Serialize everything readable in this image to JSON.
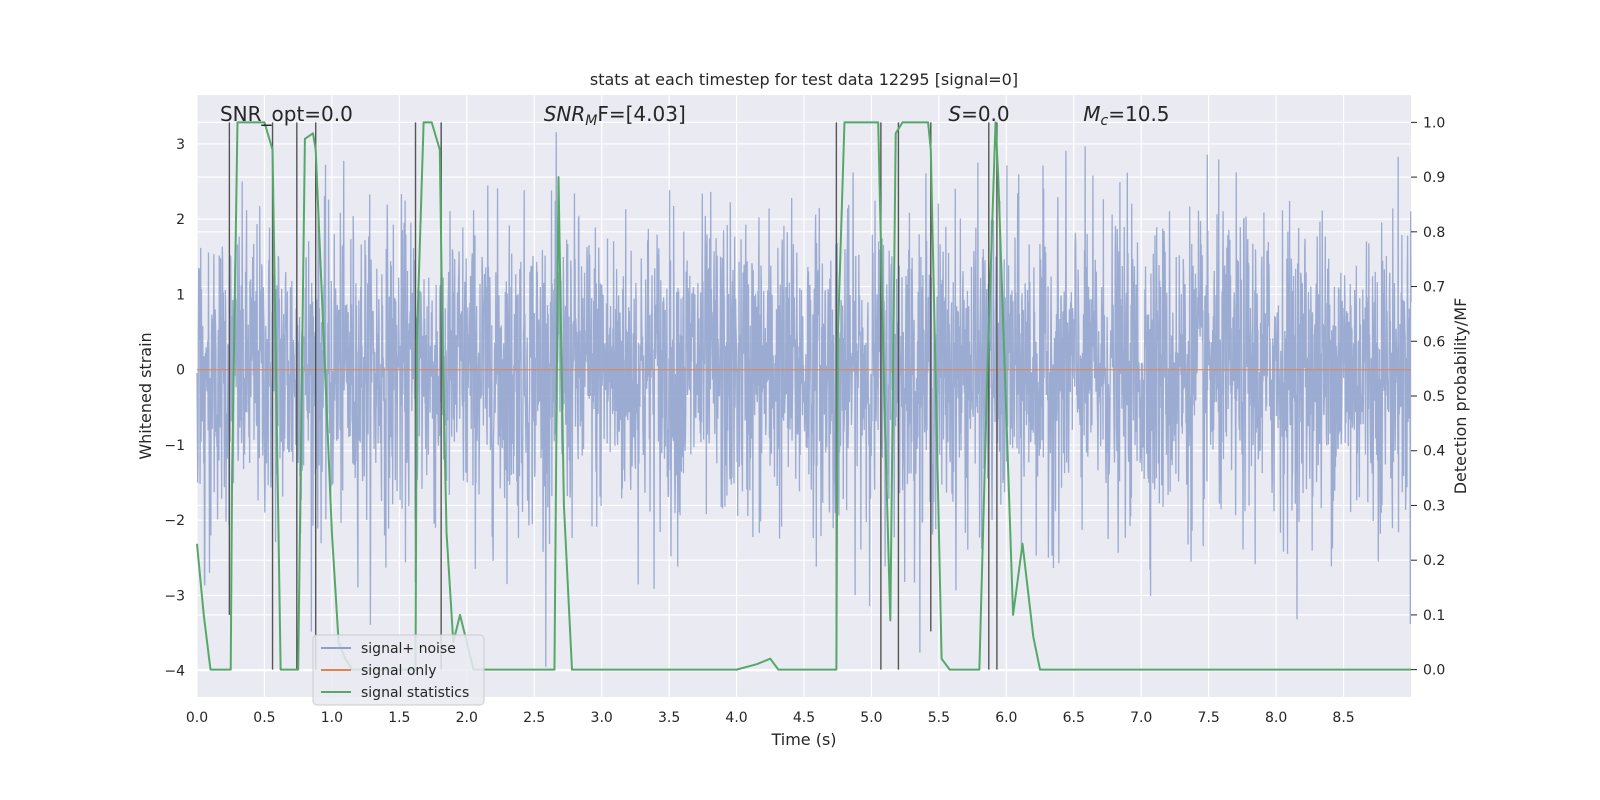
{
  "chart_data": {
    "type": "line",
    "title": "stats at each timestep for test data 12295 [signal=0]",
    "xlabel": "Time (s)",
    "ylabel": "Whitened strain",
    "ylabel_right": "Detection probability/MF",
    "xlim": [
      0,
      9.0
    ],
    "ylim": [
      -4.35,
      3.65
    ],
    "ylim_right": [
      -0.05,
      1.05
    ],
    "x_ticks": [
      0.0,
      0.5,
      1.0,
      1.5,
      2.0,
      2.5,
      3.0,
      3.5,
      4.0,
      4.5,
      5.0,
      5.5,
      6.0,
      6.5,
      7.0,
      7.5,
      8.0,
      8.5
    ],
    "y_ticks": [
      -4,
      -3,
      -2,
      -1,
      0,
      1,
      2,
      3
    ],
    "y_ticks_right": [
      0.0,
      0.1,
      0.2,
      0.3,
      0.4,
      0.5,
      0.6,
      0.7,
      0.8,
      0.9,
      1.0
    ],
    "annotations": [
      {
        "text": "SNR_opt=0.0",
        "x": 0.2
      },
      {
        "pre": "SNR",
        "sub": "M",
        "post": "F=[4.03]",
        "x": 2.6
      },
      {
        "pre": "S",
        "sub": "",
        "post": "=0.0",
        "x": 5.6
      },
      {
        "pre": "M",
        "sub": "c",
        "post": "=10.5",
        "x": 6.6
      }
    ],
    "legend": {
      "placement": "lower-left",
      "entries": [
        "signal+ noise",
        "signal only",
        "signal statistics"
      ]
    },
    "series": [
      {
        "name": "signal+ noise",
        "color": "#8da0cb",
        "noise_mean": 0.0,
        "noise_std": 1.0,
        "peak_max": 3.3,
        "peak_min": -3.95
      },
      {
        "name": "signal only",
        "color": "#dd8452",
        "x": [
          0.0,
          9.0
        ],
        "y": [
          0.0,
          0.0
        ]
      },
      {
        "name": "signal statistics",
        "color": "#55a868",
        "axis": "right",
        "x": [
          0.0,
          0.05,
          0.1,
          0.25,
          0.26,
          0.3,
          0.5,
          0.56,
          0.62,
          0.75,
          0.8,
          0.86,
          0.88,
          0.94,
          1.0,
          1.05,
          1.1,
          1.15,
          1.62,
          1.63,
          1.68,
          1.74,
          1.8,
          1.82,
          1.85,
          1.9,
          1.95,
          2.0,
          2.05,
          2.65,
          2.68,
          2.72,
          2.78,
          3.1,
          3.5,
          4.0,
          4.15,
          4.25,
          4.31,
          4.5,
          4.74,
          4.75,
          4.8,
          5.05,
          5.1,
          5.14,
          5.18,
          5.23,
          5.42,
          5.44,
          5.52,
          5.58,
          5.8,
          5.86,
          5.92,
          5.94,
          6.05,
          6.12,
          6.2,
          6.25,
          6.5,
          7.0,
          8.0,
          9.0
        ],
        "y": [
          0.23,
          0.1,
          0.0,
          0.0,
          0.35,
          1.0,
          1.0,
          0.95,
          0.0,
          0.0,
          0.97,
          0.98,
          0.95,
          0.6,
          0.25,
          0.05,
          0.02,
          0.0,
          0.0,
          0.6,
          1.0,
          1.0,
          0.95,
          0.6,
          0.25,
          0.05,
          0.1,
          0.05,
          0.0,
          0.0,
          0.9,
          0.3,
          0.0,
          0.0,
          0.0,
          0.0,
          0.01,
          0.02,
          0.0,
          0.0,
          0.0,
          0.6,
          1.0,
          1.0,
          0.45,
          0.09,
          0.98,
          1.0,
          1.0,
          0.95,
          0.02,
          0.0,
          0.0,
          0.55,
          1.0,
          0.9,
          0.1,
          0.23,
          0.06,
          0.0,
          0.0,
          0.0,
          0.0,
          0.0
        ]
      }
    ],
    "vertical_markers": [
      {
        "x": 0.24,
        "y_top": 1.0,
        "y_bottom": 0.1
      },
      {
        "x": 0.56,
        "y_top": 1.0,
        "y_bottom": 0.0
      },
      {
        "x": 0.74,
        "y_top": 1.0,
        "y_bottom": 0.0
      },
      {
        "x": 0.88,
        "y_top": 1.0,
        "y_bottom": 0.0
      },
      {
        "x": 1.62,
        "y_top": 1.0,
        "y_bottom": 0.16
      },
      {
        "x": 1.81,
        "y_top": 1.0,
        "y_bottom": 0.0
      },
      {
        "x": 4.74,
        "y_top": 1.0,
        "y_bottom": 0.0
      },
      {
        "x": 5.07,
        "y_top": 1.0,
        "y_bottom": 0.0
      },
      {
        "x": 5.2,
        "y_top": 1.0,
        "y_bottom": 0.0
      },
      {
        "x": 5.44,
        "y_top": 1.0,
        "y_bottom": 0.07
      },
      {
        "x": 5.87,
        "y_top": 1.0,
        "y_bottom": 0.0
      },
      {
        "x": 5.93,
        "y_top": 1.0,
        "y_bottom": 0.0
      }
    ],
    "grid": true
  }
}
